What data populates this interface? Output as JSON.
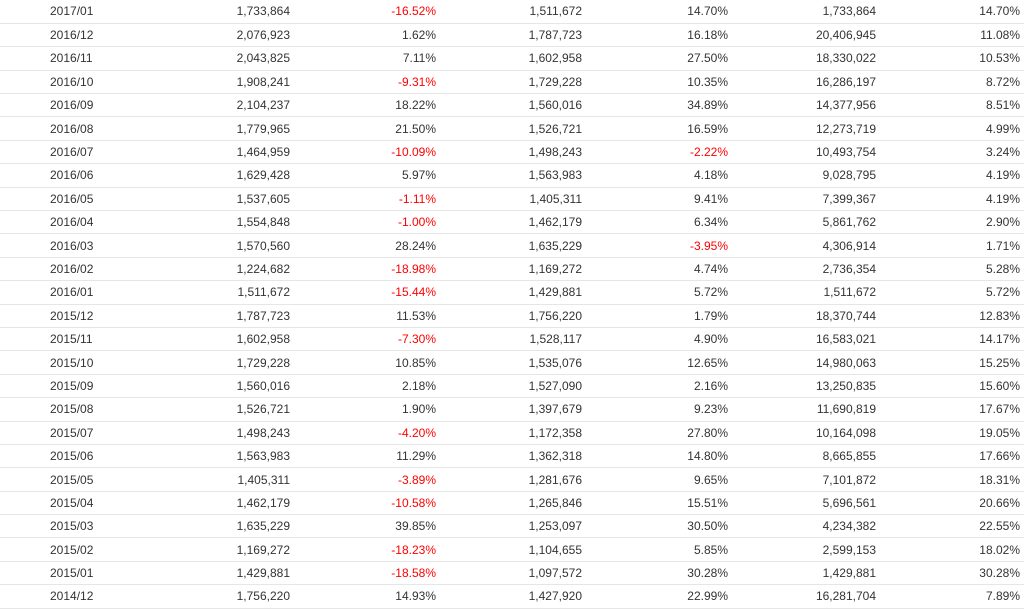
{
  "colors": {
    "negative": "#ff0000",
    "text": "#333333",
    "border": "#e6e6e6"
  },
  "rows": [
    [
      "2017/01",
      "1,733,864",
      "-16.52%",
      "1,511,672",
      "14.70%",
      "1,733,864",
      "14.70%"
    ],
    [
      "2016/12",
      "2,076,923",
      "1.62%",
      "1,787,723",
      "16.18%",
      "20,406,945",
      "11.08%"
    ],
    [
      "2016/11",
      "2,043,825",
      "7.11%",
      "1,602,958",
      "27.50%",
      "18,330,022",
      "10.53%"
    ],
    [
      "2016/10",
      "1,908,241",
      "-9.31%",
      "1,729,228",
      "10.35%",
      "16,286,197",
      "8.72%"
    ],
    [
      "2016/09",
      "2,104,237",
      "18.22%",
      "1,560,016",
      "34.89%",
      "14,377,956",
      "8.51%"
    ],
    [
      "2016/08",
      "1,779,965",
      "21.50%",
      "1,526,721",
      "16.59%",
      "12,273,719",
      "4.99%"
    ],
    [
      "2016/07",
      "1,464,959",
      "-10.09%",
      "1,498,243",
      "-2.22%",
      "10,493,754",
      "3.24%"
    ],
    [
      "2016/06",
      "1,629,428",
      "5.97%",
      "1,563,983",
      "4.18%",
      "9,028,795",
      "4.19%"
    ],
    [
      "2016/05",
      "1,537,605",
      "-1.11%",
      "1,405,311",
      "9.41%",
      "7,399,367",
      "4.19%"
    ],
    [
      "2016/04",
      "1,554,848",
      "-1.00%",
      "1,462,179",
      "6.34%",
      "5,861,762",
      "2.90%"
    ],
    [
      "2016/03",
      "1,570,560",
      "28.24%",
      "1,635,229",
      "-3.95%",
      "4,306,914",
      "1.71%"
    ],
    [
      "2016/02",
      "1,224,682",
      "-18.98%",
      "1,169,272",
      "4.74%",
      "2,736,354",
      "5.28%"
    ],
    [
      "2016/01",
      "1,511,672",
      "-15.44%",
      "1,429,881",
      "5.72%",
      "1,511,672",
      "5.72%"
    ],
    [
      "2015/12",
      "1,787,723",
      "11.53%",
      "1,756,220",
      "1.79%",
      "18,370,744",
      "12.83%"
    ],
    [
      "2015/11",
      "1,602,958",
      "-7.30%",
      "1,528,117",
      "4.90%",
      "16,583,021",
      "14.17%"
    ],
    [
      "2015/10",
      "1,729,228",
      "10.85%",
      "1,535,076",
      "12.65%",
      "14,980,063",
      "15.25%"
    ],
    [
      "2015/09",
      "1,560,016",
      "2.18%",
      "1,527,090",
      "2.16%",
      "13,250,835",
      "15.60%"
    ],
    [
      "2015/08",
      "1,526,721",
      "1.90%",
      "1,397,679",
      "9.23%",
      "11,690,819",
      "17.67%"
    ],
    [
      "2015/07",
      "1,498,243",
      "-4.20%",
      "1,172,358",
      "27.80%",
      "10,164,098",
      "19.05%"
    ],
    [
      "2015/06",
      "1,563,983",
      "11.29%",
      "1,362,318",
      "14.80%",
      "8,665,855",
      "17.66%"
    ],
    [
      "2015/05",
      "1,405,311",
      "-3.89%",
      "1,281,676",
      "9.65%",
      "7,101,872",
      "18.31%"
    ],
    [
      "2015/04",
      "1,462,179",
      "-10.58%",
      "1,265,846",
      "15.51%",
      "5,696,561",
      "20.66%"
    ],
    [
      "2015/03",
      "1,635,229",
      "39.85%",
      "1,253,097",
      "30.50%",
      "4,234,382",
      "22.55%"
    ],
    [
      "2015/02",
      "1,169,272",
      "-18.23%",
      "1,104,655",
      "5.85%",
      "2,599,153",
      "18.02%"
    ],
    [
      "2015/01",
      "1,429,881",
      "-18.58%",
      "1,097,572",
      "30.28%",
      "1,429,881",
      "30.28%"
    ],
    [
      "2014/12",
      "1,756,220",
      "14.93%",
      "1,427,920",
      "22.99%",
      "16,281,704",
      "7.89%"
    ]
  ]
}
